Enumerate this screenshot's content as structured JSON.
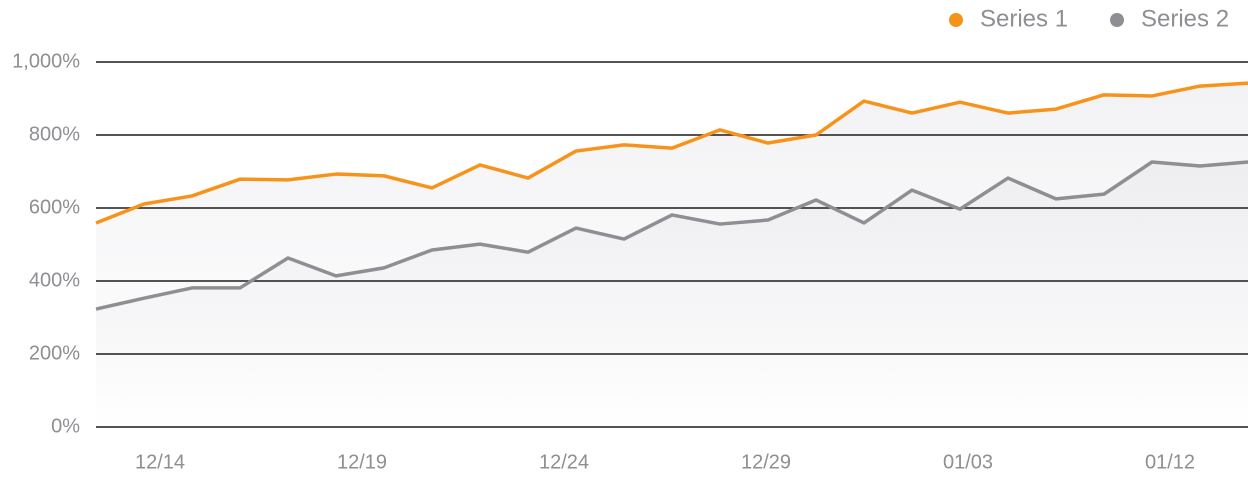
{
  "chart_data": {
    "type": "line",
    "x_labels": [
      "12/14",
      "12/19",
      "12/24",
      "12/29",
      "01/03",
      "01/12"
    ],
    "series": [
      {
        "name": "Series 1",
        "color": "#f7931a",
        "values": [
          559,
          611,
          633,
          679,
          677,
          693,
          688,
          655,
          718,
          682,
          756,
          773,
          764,
          814,
          778,
          800,
          893,
          860,
          890,
          860,
          871,
          910,
          907,
          934,
          942
        ]
      },
      {
        "name": "Series 2",
        "color": "#8e8e93",
        "values": [
          323,
          353,
          381,
          381,
          463,
          414,
          436,
          485,
          501,
          479,
          545,
          515,
          581,
          556,
          567,
          622,
          559,
          649,
          597,
          682,
          625,
          638,
          726,
          715,
          726
        ]
      }
    ],
    "ylim": [
      0,
      1000
    ],
    "yticks": [
      {
        "value": 0,
        "label": "0%"
      },
      {
        "value": 200,
        "label": "200%"
      },
      {
        "value": 400,
        "label": "400%"
      },
      {
        "value": 600,
        "label": "600%"
      },
      {
        "value": 800,
        "label": "800%"
      },
      {
        "value": 1000,
        "label": "1,000%"
      }
    ],
    "grid": true,
    "legend": "top-right"
  }
}
